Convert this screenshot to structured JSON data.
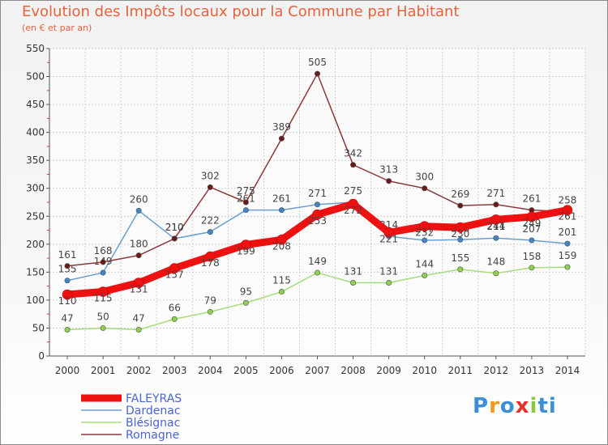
{
  "header": {
    "title": "Evolution des Impôts locaux pour la Commune par Habitant",
    "subtitle": "(en € et par an)"
  },
  "logo": {
    "text": "Proxiti",
    "letters": [
      "P",
      "r",
      "o",
      "x",
      "i",
      "ti"
    ]
  },
  "chart_data": {
    "type": "line",
    "title": "Evolution des Impôts locaux pour la Commune par Habitant",
    "subtitle": "(en € et par an)",
    "xlabel": "",
    "ylabel": "",
    "ylim": [
      0,
      550
    ],
    "yticks": [
      0,
      50,
      100,
      150,
      200,
      250,
      300,
      350,
      400,
      450,
      500,
      550
    ],
    "categories": [
      "2000",
      "2001",
      "2002",
      "2003",
      "2004",
      "2005",
      "2006",
      "2007",
      "2008",
      "2009",
      "2010",
      "2011",
      "2012",
      "2013",
      "2014"
    ],
    "grid": true,
    "legend_position": "bottom-left",
    "series": [
      {
        "name": "FALEYRAS",
        "color": "#ee1111",
        "marker": "#ee1111",
        "weight": "thick",
        "values": [
          110,
          115,
          131,
          157,
          178,
          199,
          208,
          253,
          272,
          221,
          232,
          230,
          244,
          249,
          261
        ]
      },
      {
        "name": "Dardenac",
        "color": "#6a9fd0",
        "marker": "#3e86c8",
        "weight": "thin",
        "values": [
          135,
          149,
          260,
          210,
          222,
          261,
          261,
          271,
          275,
          214,
          207,
          208,
          211,
          207,
          201
        ]
      },
      {
        "name": "Blésignac",
        "color": "#a6dc7a",
        "marker": "#8fd14f",
        "weight": "thin",
        "values": [
          47,
          50,
          47,
          66,
          79,
          95,
          115,
          149,
          131,
          131,
          144,
          155,
          148,
          158,
          159
        ]
      },
      {
        "name": "Romagne",
        "color": "#8b3a3a",
        "marker": "#6b1a1a",
        "weight": "thin",
        "values": [
          161,
          168,
          180,
          210,
          302,
          275,
          389,
          505,
          342,
          313,
          300,
          269,
          271,
          261,
          258
        ]
      }
    ]
  }
}
